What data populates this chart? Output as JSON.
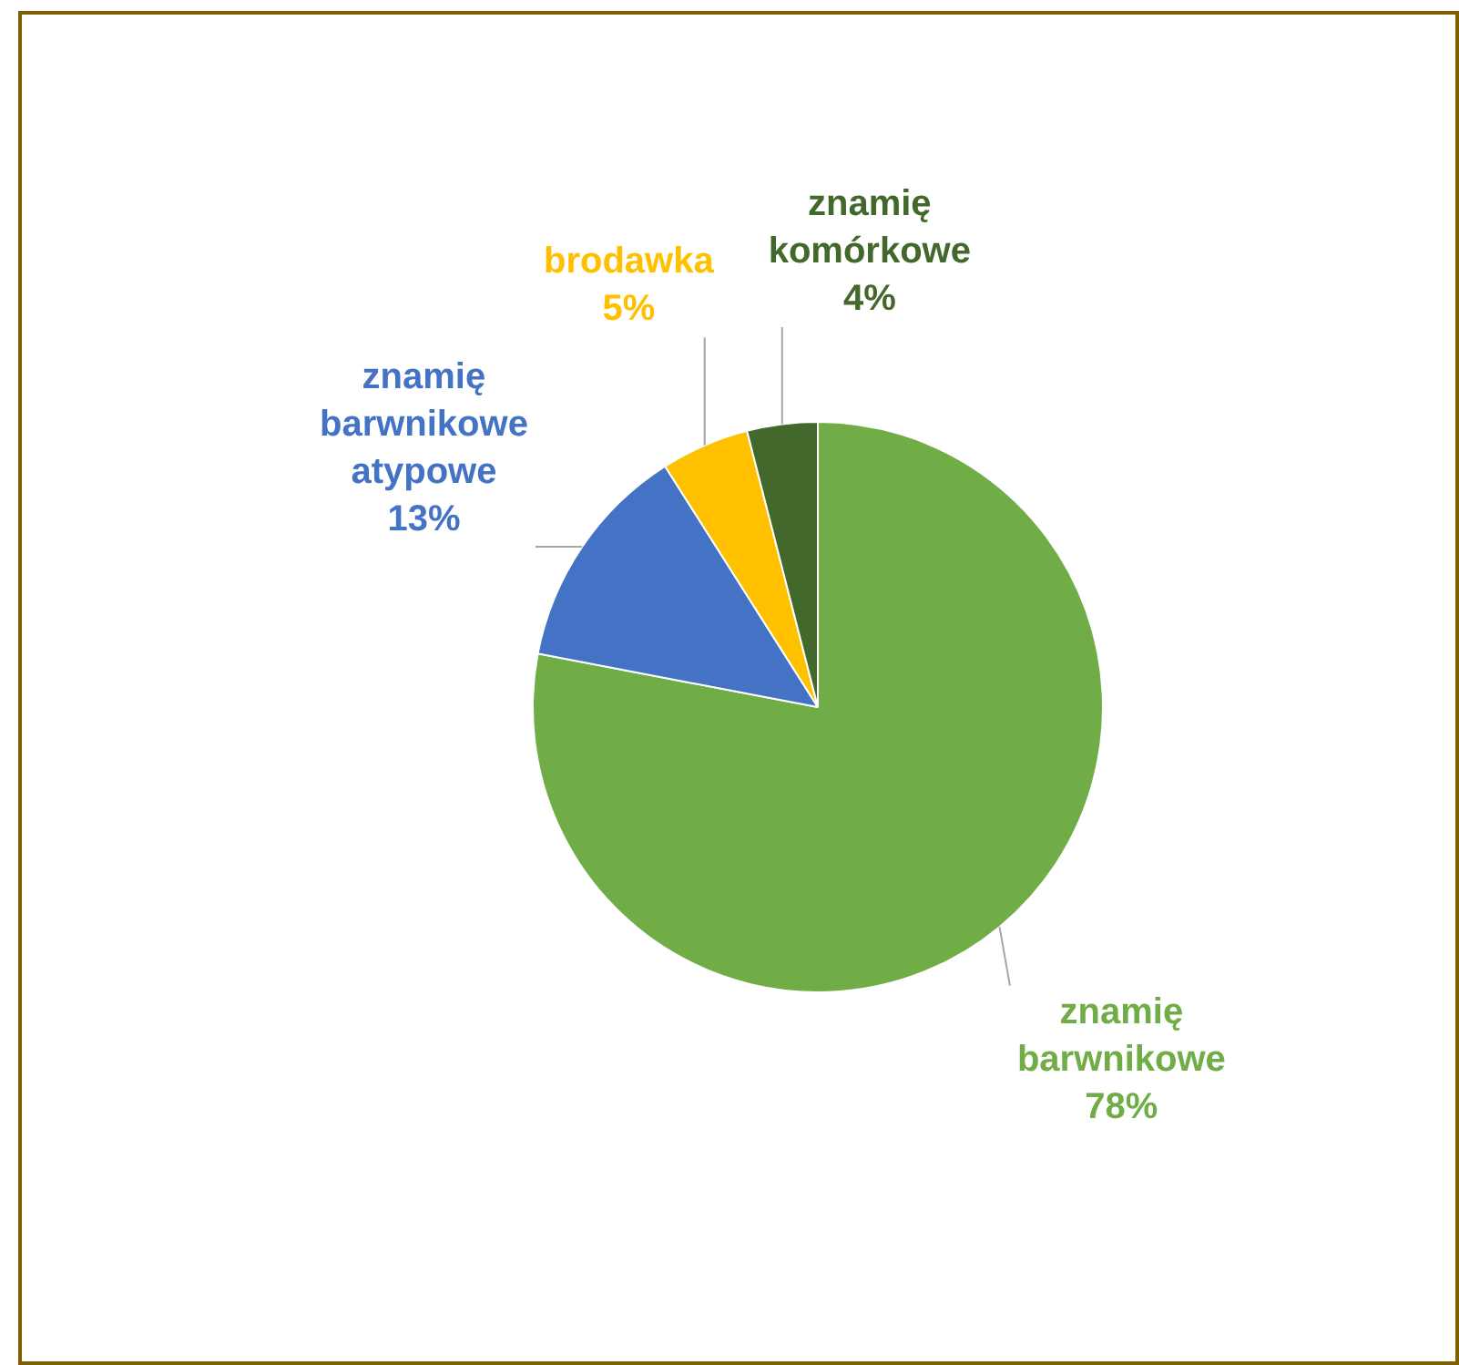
{
  "chart_data": {
    "type": "pie",
    "categories": [
      "znamię barwnikowe",
      "znamię barwnikowe atypowe",
      "brodawka",
      "znamię komórkowe"
    ],
    "values": [
      78,
      13,
      5,
      4
    ],
    "value_labels": [
      "78%",
      "13%",
      "5%",
      "4%"
    ],
    "colors": [
      "#70ad47",
      "#4472c4",
      "#ffc000",
      "#43682b"
    ],
    "legend": false
  }
}
